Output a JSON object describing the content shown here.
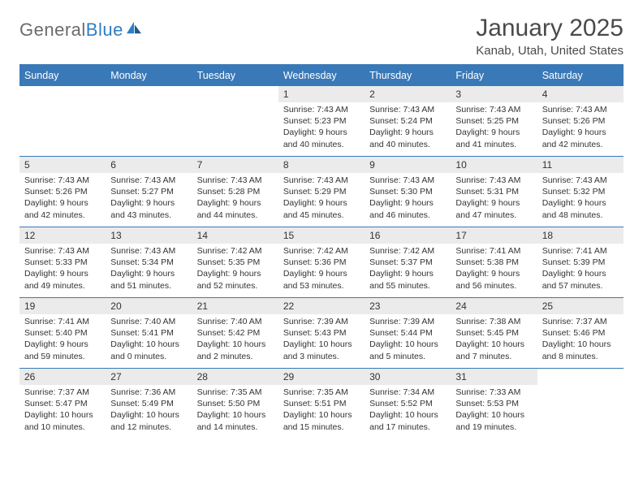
{
  "logo": {
    "text1": "General",
    "text2": "Blue"
  },
  "title": "January 2025",
  "location": "Kanab, Utah, United States",
  "header_bg": "#3a79b7",
  "days_of_week": [
    "Sunday",
    "Monday",
    "Tuesday",
    "Wednesday",
    "Thursday",
    "Friday",
    "Saturday"
  ],
  "weeks": [
    [
      {
        "n": "",
        "empty": true
      },
      {
        "n": "",
        "empty": true
      },
      {
        "n": "",
        "empty": true
      },
      {
        "n": "1",
        "sunrise": "7:43 AM",
        "sunset": "5:23 PM",
        "daylight": "9 hours and 40 minutes."
      },
      {
        "n": "2",
        "sunrise": "7:43 AM",
        "sunset": "5:24 PM",
        "daylight": "9 hours and 40 minutes."
      },
      {
        "n": "3",
        "sunrise": "7:43 AM",
        "sunset": "5:25 PM",
        "daylight": "9 hours and 41 minutes."
      },
      {
        "n": "4",
        "sunrise": "7:43 AM",
        "sunset": "5:26 PM",
        "daylight": "9 hours and 42 minutes."
      }
    ],
    [
      {
        "n": "5",
        "sunrise": "7:43 AM",
        "sunset": "5:26 PM",
        "daylight": "9 hours and 42 minutes."
      },
      {
        "n": "6",
        "sunrise": "7:43 AM",
        "sunset": "5:27 PM",
        "daylight": "9 hours and 43 minutes."
      },
      {
        "n": "7",
        "sunrise": "7:43 AM",
        "sunset": "5:28 PM",
        "daylight": "9 hours and 44 minutes."
      },
      {
        "n": "8",
        "sunrise": "7:43 AM",
        "sunset": "5:29 PM",
        "daylight": "9 hours and 45 minutes."
      },
      {
        "n": "9",
        "sunrise": "7:43 AM",
        "sunset": "5:30 PM",
        "daylight": "9 hours and 46 minutes."
      },
      {
        "n": "10",
        "sunrise": "7:43 AM",
        "sunset": "5:31 PM",
        "daylight": "9 hours and 47 minutes."
      },
      {
        "n": "11",
        "sunrise": "7:43 AM",
        "sunset": "5:32 PM",
        "daylight": "9 hours and 48 minutes."
      }
    ],
    [
      {
        "n": "12",
        "sunrise": "7:43 AM",
        "sunset": "5:33 PM",
        "daylight": "9 hours and 49 minutes."
      },
      {
        "n": "13",
        "sunrise": "7:43 AM",
        "sunset": "5:34 PM",
        "daylight": "9 hours and 51 minutes."
      },
      {
        "n": "14",
        "sunrise": "7:42 AM",
        "sunset": "5:35 PM",
        "daylight": "9 hours and 52 minutes."
      },
      {
        "n": "15",
        "sunrise": "7:42 AM",
        "sunset": "5:36 PM",
        "daylight": "9 hours and 53 minutes."
      },
      {
        "n": "16",
        "sunrise": "7:42 AM",
        "sunset": "5:37 PM",
        "daylight": "9 hours and 55 minutes."
      },
      {
        "n": "17",
        "sunrise": "7:41 AM",
        "sunset": "5:38 PM",
        "daylight": "9 hours and 56 minutes."
      },
      {
        "n": "18",
        "sunrise": "7:41 AM",
        "sunset": "5:39 PM",
        "daylight": "9 hours and 57 minutes."
      }
    ],
    [
      {
        "n": "19",
        "sunrise": "7:41 AM",
        "sunset": "5:40 PM",
        "daylight": "9 hours and 59 minutes."
      },
      {
        "n": "20",
        "sunrise": "7:40 AM",
        "sunset": "5:41 PM",
        "daylight": "10 hours and 0 minutes."
      },
      {
        "n": "21",
        "sunrise": "7:40 AM",
        "sunset": "5:42 PM",
        "daylight": "10 hours and 2 minutes."
      },
      {
        "n": "22",
        "sunrise": "7:39 AM",
        "sunset": "5:43 PM",
        "daylight": "10 hours and 3 minutes."
      },
      {
        "n": "23",
        "sunrise": "7:39 AM",
        "sunset": "5:44 PM",
        "daylight": "10 hours and 5 minutes."
      },
      {
        "n": "24",
        "sunrise": "7:38 AM",
        "sunset": "5:45 PM",
        "daylight": "10 hours and 7 minutes."
      },
      {
        "n": "25",
        "sunrise": "7:37 AM",
        "sunset": "5:46 PM",
        "daylight": "10 hours and 8 minutes."
      }
    ],
    [
      {
        "n": "26",
        "sunrise": "7:37 AM",
        "sunset": "5:47 PM",
        "daylight": "10 hours and 10 minutes."
      },
      {
        "n": "27",
        "sunrise": "7:36 AM",
        "sunset": "5:49 PM",
        "daylight": "10 hours and 12 minutes."
      },
      {
        "n": "28",
        "sunrise": "7:35 AM",
        "sunset": "5:50 PM",
        "daylight": "10 hours and 14 minutes."
      },
      {
        "n": "29",
        "sunrise": "7:35 AM",
        "sunset": "5:51 PM",
        "daylight": "10 hours and 15 minutes."
      },
      {
        "n": "30",
        "sunrise": "7:34 AM",
        "sunset": "5:52 PM",
        "daylight": "10 hours and 17 minutes."
      },
      {
        "n": "31",
        "sunrise": "7:33 AM",
        "sunset": "5:53 PM",
        "daylight": "10 hours and 19 minutes."
      },
      {
        "n": "",
        "empty": true
      }
    ]
  ]
}
